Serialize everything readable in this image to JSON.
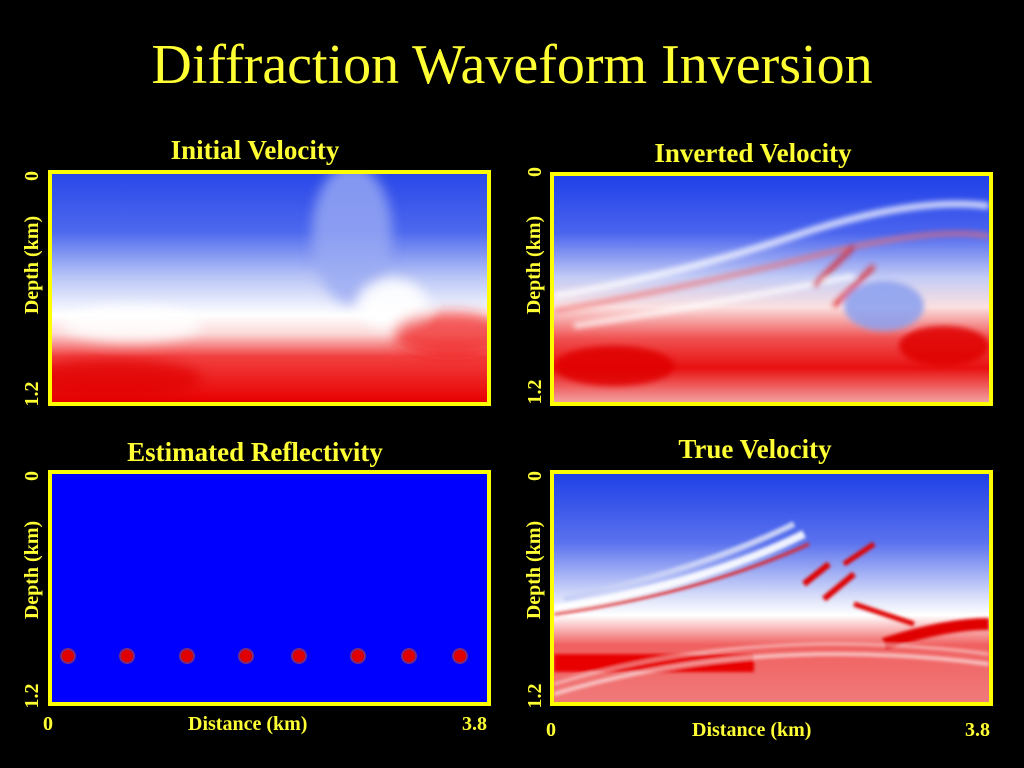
{
  "title": "Diffraction Waveform Inversion",
  "panels": {
    "initial": {
      "title": "Initial Velocity"
    },
    "inverted": {
      "title": "Inverted Velocity"
    },
    "reflectivity": {
      "title": "Estimated Reflectivity"
    },
    "true": {
      "title": "True Velocity"
    }
  },
  "axes": {
    "ylabel": "Depth (km)",
    "ytick_top": "0",
    "ytick_bottom": "1.2",
    "xlabel": "Distance (km)",
    "xtick_left": "0",
    "xtick_right": "3.8"
  },
  "colors": {
    "background": "#000000",
    "text": "#ffff33",
    "frame": "#ffff00",
    "low_velocity": "#1f3fe6",
    "high_velocity": "#f00000",
    "reflectivity_bg": "#0000ff",
    "source_dot": "#e00000"
  },
  "reflectivity_sources": {
    "count": 8
  }
}
